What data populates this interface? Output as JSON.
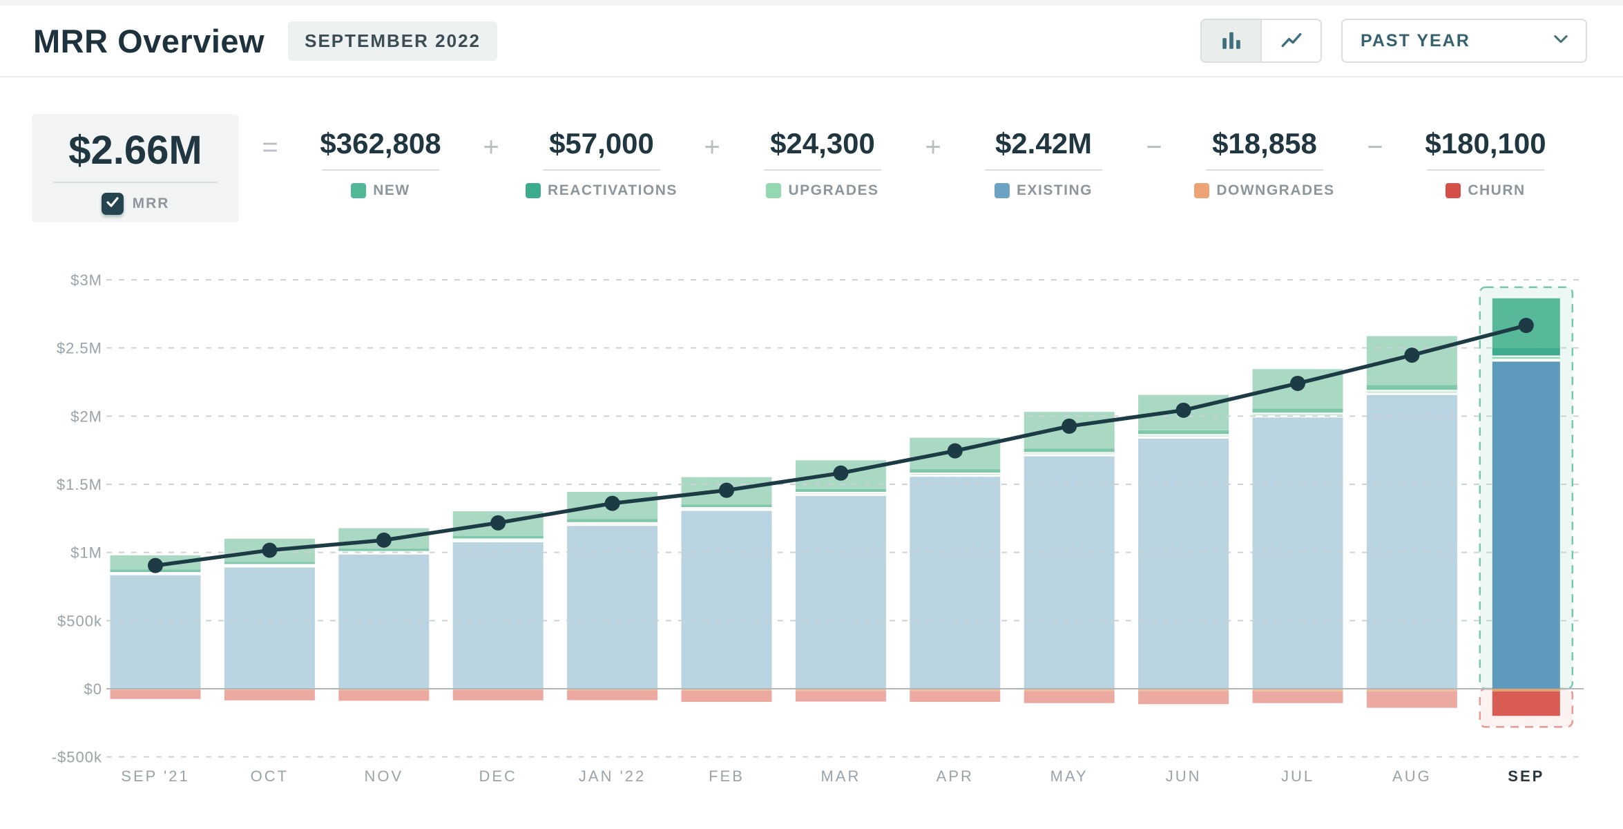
{
  "header": {
    "title": "MRR Overview",
    "badge": "SEPTEMBER 2022",
    "range_label": "PAST YEAR",
    "icons": {
      "bar_chart": "bar-chart",
      "line_chart": "line-chart",
      "chevron_down": "chevron-down",
      "checkmark": "check"
    }
  },
  "equation": {
    "result": {
      "value": "$2.66M",
      "label": "MRR",
      "checked": true,
      "checkbox_color": "#24454f"
    },
    "operators": [
      "=",
      "+",
      "+",
      "+",
      "−",
      "−"
    ],
    "terms": [
      {
        "value": "$362,808",
        "label": "NEW",
        "color": "#52b796"
      },
      {
        "value": "$57,000",
        "label": "REACTIVATIONS",
        "color": "#3dab8e"
      },
      {
        "value": "$24,300",
        "label": "UPGRADES",
        "color": "#93d9af"
      },
      {
        "value": "$2.42M",
        "label": "EXISTING",
        "color": "#6da3c2"
      },
      {
        "value": "$18,858",
        "label": "DOWNGRADES",
        "color": "#eda373"
      },
      {
        "value": "$180,100",
        "label": "CHURN",
        "color": "#d6504a"
      }
    ]
  },
  "chart_data": {
    "type": "stacked-bar-with-line",
    "title": "MRR Overview — Past Year",
    "categories": [
      "SEP '21",
      "OCT",
      "NOV",
      "DEC",
      "JAN '22",
      "FEB",
      "MAR",
      "APR",
      "MAY",
      "JUN",
      "JUL",
      "AUG",
      "SEP"
    ],
    "selected_index": 12,
    "ylim": [
      -500000,
      3100000
    ],
    "grid": true,
    "y_axis": {
      "ticks": [
        {
          "label": "$3M",
          "value": 3000000
        },
        {
          "label": "$2.5M",
          "value": 2500000
        },
        {
          "label": "$2M",
          "value": 2000000
        },
        {
          "label": "$1.5M",
          "value": 1500000
        },
        {
          "label": "$1M",
          "value": 1000000
        },
        {
          "label": "$500k",
          "value": 500000
        },
        {
          "label": "$0",
          "value": 0
        },
        {
          "label": "-$500k",
          "value": -500000
        }
      ]
    },
    "series": [
      {
        "key": "existing",
        "name": "EXISTING",
        "values": [
          848000,
          905000,
          1000000,
          1090000,
          1210000,
          1320000,
          1430000,
          1570000,
          1720000,
          1850000,
          2005000,
          2170000,
          2420000
        ]
      },
      {
        "key": "upgrades",
        "name": "UPGRADES",
        "values": [
          8000,
          10000,
          10000,
          12000,
          12000,
          12000,
          14000,
          16000,
          16000,
          18000,
          20000,
          22000,
          24300
        ]
      },
      {
        "key": "reactivations",
        "name": "REACTIVATIONS",
        "values": [
          18000,
          16000,
          18000,
          20000,
          22000,
          20000,
          22000,
          25000,
          25000,
          28000,
          30000,
          35000,
          57000
        ]
      },
      {
        "key": "new",
        "name": "NEW",
        "values": [
          105000,
          170000,
          150000,
          180000,
          200000,
          200000,
          210000,
          230000,
          270000,
          260000,
          290000,
          360000,
          362808
        ]
      },
      {
        "key": "downgrades",
        "name": "DOWNGRADES",
        "values": [
          -10000,
          -10000,
          -12000,
          -10000,
          -12000,
          -14000,
          -16000,
          -16000,
          -18000,
          -18000,
          -20000,
          -20000,
          -18858
        ]
      },
      {
        "key": "churn",
        "name": "CHURN",
        "values": [
          -65000,
          -75000,
          -76000,
          -75000,
          -72000,
          -82000,
          -78000,
          -80000,
          -87000,
          -95000,
          -85000,
          -120000,
          -180100
        ]
      }
    ],
    "mrr_line": {
      "name": "MRR",
      "values": [
        904000,
        1016000,
        1090000,
        1217000,
        1360000,
        1456000,
        1582000,
        1745000,
        1926000,
        2043000,
        2240000,
        2447000,
        2665150
      ]
    },
    "palette": {
      "existing": [
        "#bad4e1",
        "#5f9abc"
      ],
      "upgrades": [
        "#c9ead3",
        "#96dcb3"
      ],
      "reactivations": [
        "#7ec7a8",
        "#3fab8e"
      ],
      "new": [
        "#a9d9c3",
        "#57b999"
      ],
      "downgrades": [
        "#edbf9b",
        "#e2a46e"
      ],
      "churn": [
        "#eba9a2",
        "#d85c53"
      ],
      "line": "#1c3b45",
      "grid": "#ccd3d6",
      "zero_line": "#b0b7ba",
      "axis_text": "#99a3a9",
      "selected_axis_text": "#2a363e",
      "selection_pos_fill": "rgba(82,183,151,0.10)",
      "selection_pos_stroke": "#79c7a9",
      "selection_neg_fill": "rgba(216,91,82,0.08)",
      "selection_neg_stroke": "#e59a92"
    }
  }
}
